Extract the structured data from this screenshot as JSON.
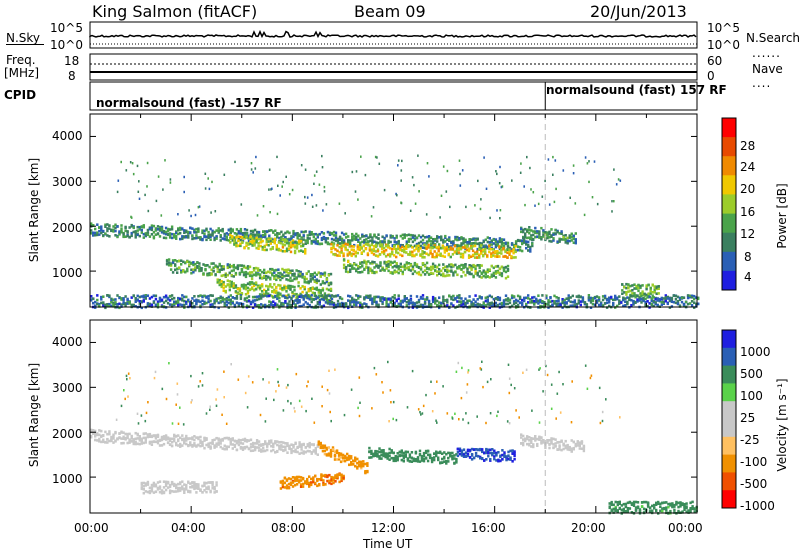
{
  "header": {
    "station": "King Salmon (fitACF)",
    "beam": "Beam 09",
    "date": "20/Jun/2013"
  },
  "noise_panel": {
    "left_label": "N.Sky",
    "right_label": "N.Search",
    "ticks_left": [
      "10^5",
      "10^0"
    ],
    "ticks_right": [
      "10^5",
      "10^0"
    ]
  },
  "freq_panel": {
    "left_label_1": "Freq.",
    "left_label_2": "[MHz]",
    "right_label": "Nave",
    "ticks_left": [
      "18",
      "8"
    ],
    "ticks_right": [
      "60",
      "0"
    ]
  },
  "cpid": {
    "label": "CPID",
    "segments": [
      {
        "text": "normalsound (fast) -157 RF",
        "start_hour": 0
      },
      {
        "text": "normalsound (fast) 157 RF",
        "start_hour": 18
      }
    ]
  },
  "x_axis": {
    "title": "Time UT",
    "ticks": [
      "00:00",
      "04:00",
      "08:00",
      "12:00",
      "16:00",
      "20:00",
      "00:00"
    ],
    "range_hours": [
      0,
      24
    ]
  },
  "colors": {
    "power": [
      "#1f1fe0",
      "#2a5fb5",
      "#3a7f5f",
      "#4aa34a",
      "#9ccc2a",
      "#f0c800",
      "#f08a00",
      "#e84a00",
      "#ff0000"
    ],
    "velocity": [
      "#ff0000",
      "#f05000",
      "#f09000",
      "#ffc060",
      "#c8c8c8",
      "#c8c8c8",
      "#5ad24a",
      "#3a8c5a",
      "#2a5fb5",
      "#1f1fe0"
    ]
  },
  "chart_data": [
    {
      "type": "heatmap",
      "title": "Power",
      "xlabel": "Time UT",
      "ylabel": "Slant Range [km]",
      "x_range": [
        0,
        24
      ],
      "ylim": [
        200,
        4500
      ],
      "yticks": [
        "1000",
        "2000",
        "3000",
        "4000"
      ],
      "colorbar": {
        "label": "Power [dB]",
        "ticks": [
          "4",
          "8",
          "12",
          "16",
          "20",
          "24",
          "28"
        ],
        "range": [
          0,
          30
        ]
      },
      "bands": [
        {
          "t0": 0.0,
          "t1": 17.5,
          "r_start": 1950,
          "r_end": 1600,
          "level": 8
        },
        {
          "t0": 3.0,
          "t1": 9.5,
          "r_start": 1150,
          "r_end": 850,
          "level": 10
        },
        {
          "t0": 5.0,
          "t1": 9.5,
          "r_start": 700,
          "r_end": 500,
          "level": 14
        },
        {
          "t0": 5.5,
          "t1": 8.5,
          "r_start": 1700,
          "r_end": 1550,
          "level": 16
        },
        {
          "t0": 9.5,
          "t1": 16.8,
          "r_start": 1500,
          "r_end": 1450,
          "level": 18
        },
        {
          "t0": 10.0,
          "t1": 16.5,
          "r_start": 1150,
          "r_end": 1000,
          "level": 12
        },
        {
          "t0": 17.0,
          "t1": 19.2,
          "r_start": 1900,
          "r_end": 1750,
          "level": 9
        },
        {
          "t0": 21.0,
          "t1": 22.5,
          "r_start": 600,
          "r_end": 600,
          "level": 12
        },
        {
          "t0": 0.0,
          "t1": 24.0,
          "r_start": 350,
          "r_end": 350,
          "level": 6
        }
      ]
    },
    {
      "type": "heatmap",
      "title": "Velocity",
      "xlabel": "Time UT",
      "ylabel": "Slant Range [km]",
      "x_range": [
        0,
        24
      ],
      "ylim": [
        200,
        4500
      ],
      "yticks": [
        "1000",
        "2000",
        "3000",
        "4000"
      ],
      "colorbar": {
        "label": "Velocity [m s⁻¹]",
        "ticks": [
          "1000",
          "500",
          "100",
          "25",
          "-25",
          "-100",
          "-500",
          "-1000"
        ],
        "range": [
          -1000,
          1000
        ]
      },
      "bands": [
        {
          "t0": 0.0,
          "t1": 9.0,
          "r_start": 1950,
          "r_end": 1650,
          "velocity": 0
        },
        {
          "t0": 2.0,
          "t1": 5.0,
          "r_start": 800,
          "r_end": 800,
          "velocity": 0
        },
        {
          "t0": 7.5,
          "t1": 10.0,
          "r_start": 900,
          "r_end": 1000,
          "velocity": -400
        },
        {
          "t0": 9.0,
          "t1": 11.0,
          "r_start": 1700,
          "r_end": 1200,
          "velocity": -150
        },
        {
          "t0": 11.0,
          "t1": 14.5,
          "r_start": 1550,
          "r_end": 1450,
          "velocity": 300
        },
        {
          "t0": 14.5,
          "t1": 16.8,
          "r_start": 1550,
          "r_end": 1500,
          "velocity": 900
        },
        {
          "t0": 17.0,
          "t1": 19.5,
          "r_start": 1850,
          "r_end": 1700,
          "velocity": 0
        },
        {
          "t0": 20.5,
          "t1": 24.0,
          "r_start": 350,
          "r_end": 350,
          "velocity": 150
        }
      ]
    }
  ]
}
